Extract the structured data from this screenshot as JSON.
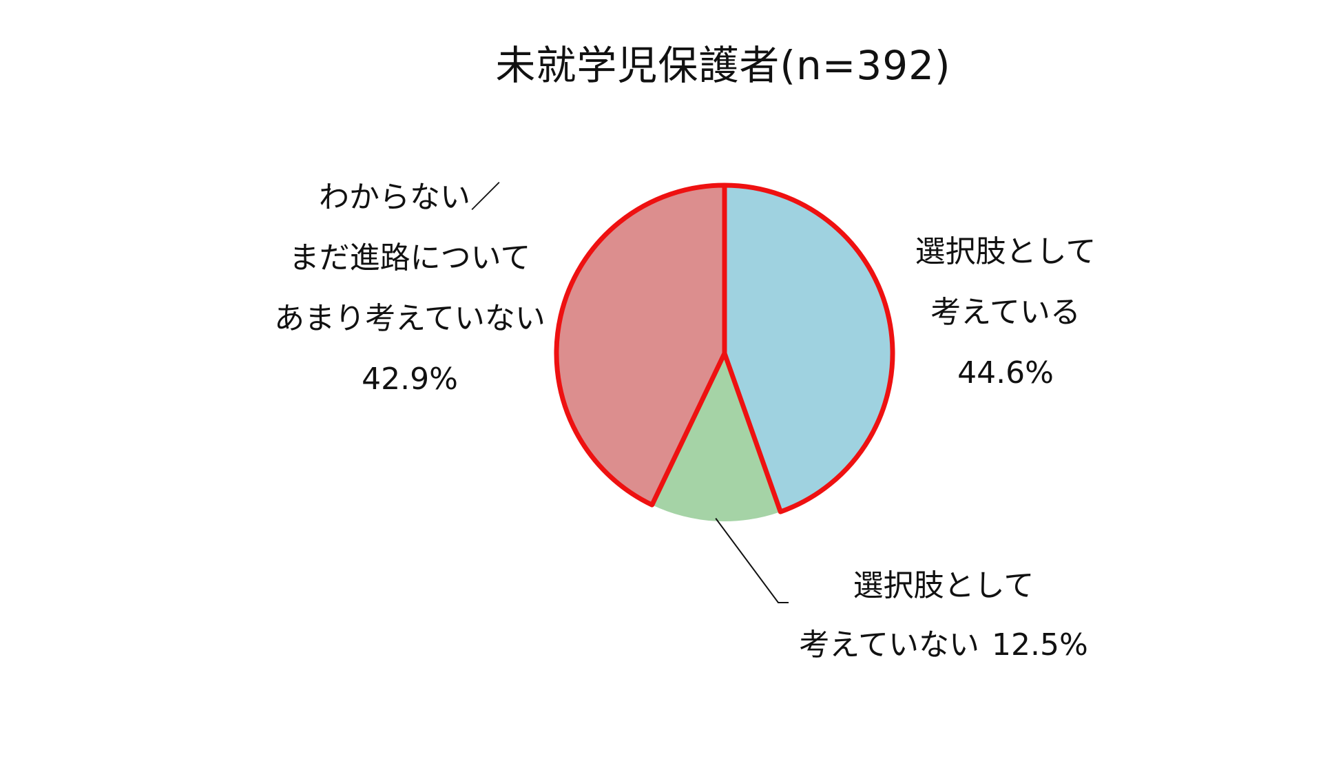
{
  "chart_data": {
    "type": "pie",
    "title": "未就学児保護者(n=392)",
    "slices": [
      {
        "label_lines": [
          "選択肢として",
          "考えている"
        ],
        "value": 44.6,
        "value_label": "44.6%",
        "color": "#9fd2e0"
      },
      {
        "label_lines": [
          "選択肢として",
          "考えていない"
        ],
        "value": 12.5,
        "value_label": "12.5%",
        "color": "#a5d3a6"
      },
      {
        "label_lines": [
          "わからない／",
          "まだ進路について",
          "あまり考えていない"
        ],
        "value": 42.9,
        "value_label": "42.9%",
        "color": "#dc8e8e"
      }
    ],
    "start_angle_deg": 0,
    "direction": "clockwise",
    "outline_color": "#ee1111"
  }
}
